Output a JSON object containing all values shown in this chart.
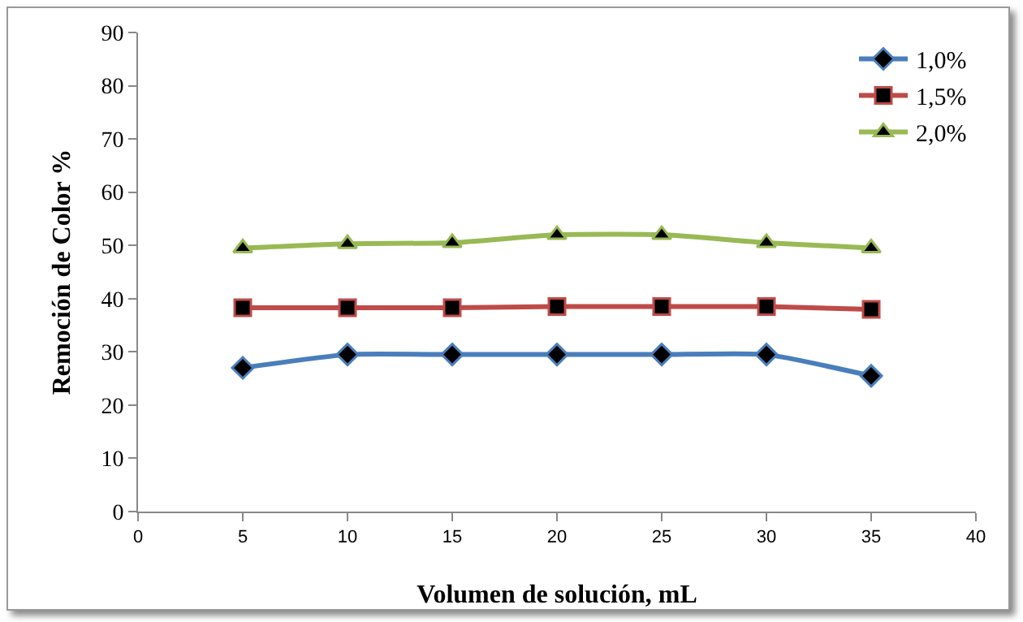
{
  "chart_data": {
    "type": "line",
    "xlabel": "Volumen de solución, mL",
    "ylabel": "Remoción de Color %",
    "x": [
      5,
      10,
      15,
      20,
      25,
      30,
      35
    ],
    "series": [
      {
        "name": "1,0%",
        "color": "#4a7ebb",
        "marker": "diamond",
        "values": [
          27,
          29.5,
          29.5,
          29.5,
          29.5,
          29.5,
          25.5
        ]
      },
      {
        "name": "1,5%",
        "color": "#be4b48",
        "marker": "square",
        "values": [
          38.3,
          38.3,
          38.3,
          38.5,
          38.5,
          38.5,
          38
        ]
      },
      {
        "name": "2,0%",
        "color": "#98b954",
        "marker": "triangle",
        "values": [
          49.5,
          50.3,
          50.5,
          52,
          52,
          50.5,
          49.5
        ]
      }
    ],
    "xlim": [
      0,
      40
    ],
    "xticks": [
      0,
      5,
      10,
      15,
      20,
      25,
      30,
      35,
      40
    ],
    "ylim": [
      0,
      90
    ],
    "yticks": [
      0,
      10,
      20,
      30,
      40,
      50,
      60,
      70,
      80,
      90
    ],
    "grid": false,
    "legend": "top right"
  }
}
